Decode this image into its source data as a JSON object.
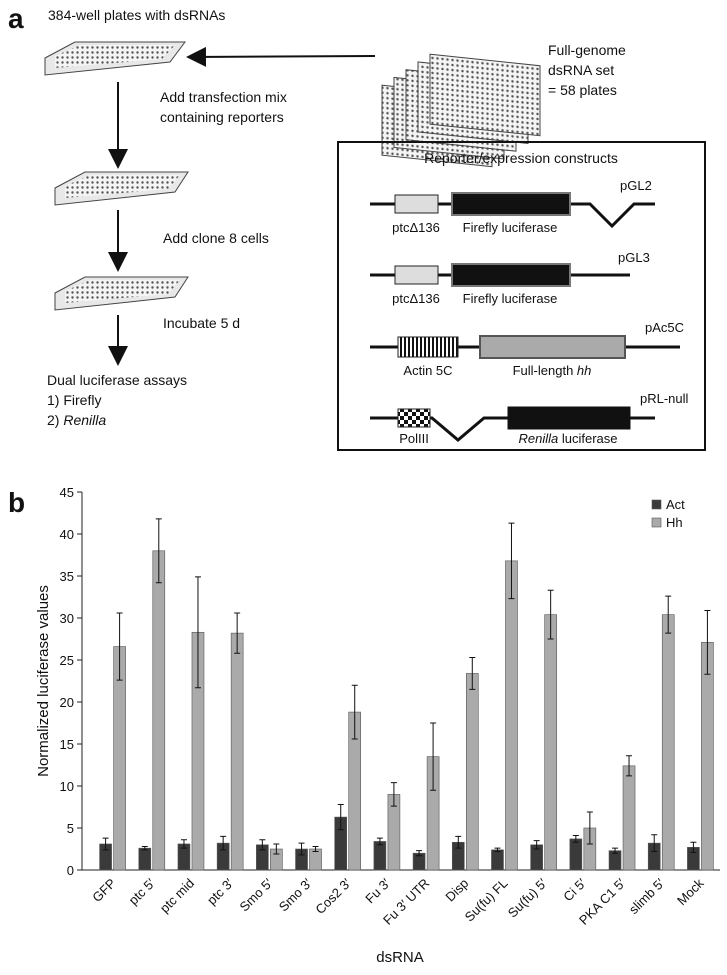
{
  "panel_a": {
    "label": "a",
    "plates_title": "384-well plates with dsRNAs",
    "genome_set": [
      "Full-genome",
      "dsRNA set",
      "= 58 plates"
    ],
    "steps": [
      "Add transfection mix",
      "containing reporters",
      "Add clone 8 cells",
      "Incubate 5 d"
    ],
    "assay_title": "Dual luciferase assays",
    "assay_item_1": "1) Firefly",
    "assay_item_2": [
      "2) ",
      "Renilla"
    ],
    "constructs_title": "Reporter/expression constructs",
    "constructs": [
      {
        "name": "pGL2",
        "promoter": "ptcΔ136",
        "gene": [
          "Firefly luciferase"
        ]
      },
      {
        "name": "pGL3",
        "promoter": "ptcΔ136",
        "gene": [
          "Firefly luciferase"
        ]
      },
      {
        "name": "pAc5C",
        "promoter": "Actin 5C",
        "gene": [
          "Full-length ",
          "hh"
        ]
      },
      {
        "name": "pRL-null",
        "promoter": "PolIII",
        "gene": [
          "Renilla",
          " luciferase"
        ]
      }
    ]
  },
  "chart_data": {
    "type": "bar",
    "panel_label": "b",
    "x_label": "dsRNA",
    "y_label": "Normalized luciferase values",
    "categories": [
      "GFP",
      "ptc 5′",
      "ptc mid",
      "ptc 3′",
      "Smo 5′",
      "Smo 3′",
      "Cos2 3′",
      "Fu 3′",
      "Fu 3′ UTR",
      "Disp",
      "Su(fu) FL",
      "Su(fu) 5′",
      "Ci 5′",
      "PKA C1 5′",
      "slimb 5′",
      "Mock"
    ],
    "series": [
      {
        "name": "Act",
        "color": "#3a3a3a",
        "values": [
          3.1,
          2.6,
          3.1,
          3.2,
          3.0,
          2.5,
          6.3,
          3.4,
          2.0,
          3.3,
          2.4,
          3.0,
          3.7,
          2.3,
          3.2,
          2.7
        ],
        "errors": [
          0.7,
          0.2,
          0.5,
          0.8,
          0.6,
          0.7,
          1.5,
          0.4,
          0.3,
          0.7,
          0.2,
          0.5,
          0.4,
          0.3,
          1.0,
          0.6
        ]
      },
      {
        "name": "Hh",
        "color": "#aaaaaa",
        "values": [
          26.6,
          38.0,
          28.3,
          28.2,
          2.5,
          2.5,
          18.8,
          9.0,
          13.5,
          23.4,
          36.8,
          30.4,
          5.0,
          12.4,
          30.4,
          27.1
        ],
        "errors": [
          4.0,
          3.8,
          6.6,
          2.4,
          0.6,
          0.3,
          3.2,
          1.4,
          4.0,
          1.9,
          4.5,
          2.9,
          1.9,
          1.2,
          2.2,
          3.8
        ]
      }
    ],
    "ylim": [
      0,
      45
    ],
    "yticks": [
      0,
      5,
      10,
      15,
      20,
      25,
      30,
      35,
      40,
      45
    ],
    "legend": "top-right"
  }
}
